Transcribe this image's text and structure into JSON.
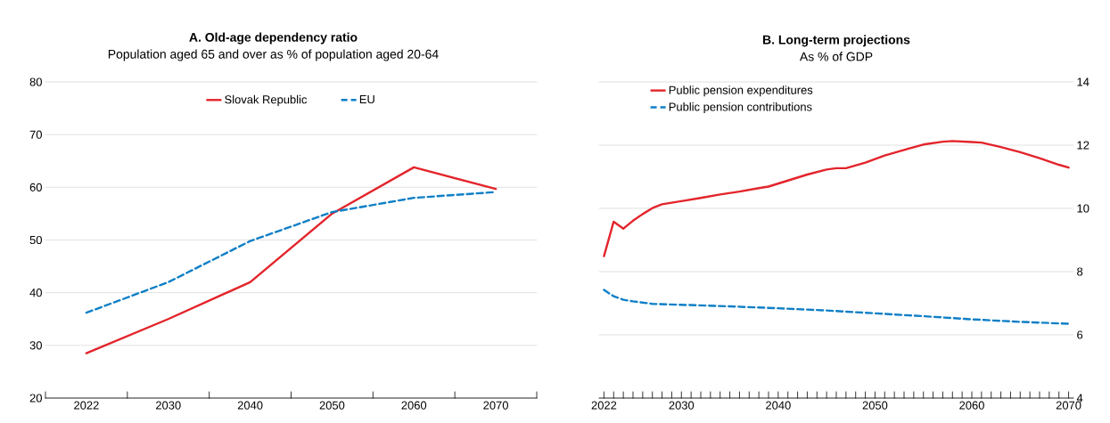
{
  "chart_data": [
    {
      "type": "line",
      "title": "A. Old-age dependency ratio",
      "subtitle": "Population aged 65 and over as % of population aged 20-64",
      "categories": [
        "2022",
        "2030",
        "2040",
        "2050",
        "2060",
        "2070"
      ],
      "series": [
        {
          "name": "Slovak Republic",
          "color": "#e3242b",
          "line_style": "solid",
          "values": [
            28.5,
            35,
            42,
            55,
            63.8,
            59.7
          ]
        },
        {
          "name": "EU",
          "color": "#0f7fc7",
          "line_style": "dashed",
          "values": [
            36.2,
            42,
            49.8,
            55.3,
            58,
            59.1
          ]
        }
      ],
      "ylim": [
        20,
        80
      ],
      "yticks": [
        20,
        30,
        40,
        50,
        60,
        70,
        80
      ],
      "grid": "y",
      "legend": "top",
      "marker": "none"
    },
    {
      "type": "line",
      "title": "B. Long-term projections",
      "subtitle": "As % of GDP",
      "series": [
        {
          "name": "Public pension expenditures",
          "color": "#e3242b",
          "line_style": "solid",
          "x": [
            2022,
            2023,
            2024,
            2025,
            2026,
            2027,
            2028,
            2029,
            2030,
            2032,
            2034,
            2036,
            2038,
            2039,
            2041,
            2043,
            2045,
            2046,
            2047,
            2049,
            2051,
            2053,
            2055,
            2057,
            2058,
            2060,
            2061,
            2063,
            2065,
            2067,
            2069,
            2070
          ],
          "values": [
            8.49,
            9.58,
            9.36,
            9.61,
            9.82,
            10.01,
            10.13,
            10.18,
            10.23,
            10.33,
            10.44,
            10.53,
            10.64,
            10.69,
            10.88,
            11.07,
            11.23,
            11.27,
            11.27,
            11.45,
            11.67,
            11.85,
            12.02,
            12.11,
            12.13,
            12.1,
            12.08,
            11.94,
            11.78,
            11.59,
            11.38,
            11.29
          ]
        },
        {
          "name": "Public pension contributions",
          "color": "#0f7fc7",
          "line_style": "dashed",
          "x": [
            2022,
            2023,
            2024,
            2025,
            2027,
            2030,
            2035,
            2040,
            2045,
            2050,
            2055,
            2060,
            2065,
            2070
          ],
          "values": [
            7.42,
            7.22,
            7.11,
            7.06,
            6.98,
            6.95,
            6.9,
            6.84,
            6.77,
            6.68,
            6.59,
            6.49,
            6.41,
            6.35
          ]
        }
      ],
      "xlim": [
        2021.5,
        2070.5
      ],
      "xticks": [
        2022,
        {
          "value": 2023,
          "label": null
        },
        {
          "value": 2024,
          "label": null
        },
        {
          "value": 2025,
          "label": null
        },
        {
          "value": 2026,
          "label": null
        },
        {
          "value": 2027,
          "label": null
        },
        {
          "value": 2028,
          "label": null
        },
        {
          "value": 2029,
          "label": null
        },
        2030,
        {
          "value": 2031,
          "label": null
        },
        {
          "value": 2032,
          "label": null
        },
        {
          "value": 2033,
          "label": null
        },
        {
          "value": 2034,
          "label": null
        },
        {
          "value": 2035,
          "label": null
        },
        {
          "value": 2036,
          "label": null
        },
        {
          "value": 2037,
          "label": null
        },
        {
          "value": 2038,
          "label": null
        },
        {
          "value": 2039,
          "label": null
        },
        2040,
        {
          "value": 2041,
          "label": null
        },
        {
          "value": 2042,
          "label": null
        },
        {
          "value": 2043,
          "label": null
        },
        {
          "value": 2044,
          "label": null
        },
        {
          "value": 2045,
          "label": null
        },
        {
          "value": 2046,
          "label": null
        },
        {
          "value": 2047,
          "label": null
        },
        {
          "value": 2048,
          "label": null
        },
        {
          "value": 2049,
          "label": null
        },
        2050,
        {
          "value": 2051,
          "label": null
        },
        {
          "value": 2052,
          "label": null
        },
        {
          "value": 2053,
          "label": null
        },
        {
          "value": 2054,
          "label": null
        },
        {
          "value": 2055,
          "label": null
        },
        {
          "value": 2056,
          "label": null
        },
        {
          "value": 2057,
          "label": null
        },
        {
          "value": 2058,
          "label": null
        },
        {
          "value": 2059,
          "label": null
        },
        2060,
        {
          "value": 2061,
          "label": null
        },
        {
          "value": 2062,
          "label": null
        },
        {
          "value": 2063,
          "label": null
        },
        {
          "value": 2064,
          "label": null
        },
        {
          "value": 2065,
          "label": null
        },
        {
          "value": 2066,
          "label": null
        },
        {
          "value": 2067,
          "label": null
        },
        {
          "value": 2068,
          "label": null
        },
        {
          "value": 2069,
          "label": null
        },
        2070
      ],
      "ylim": [
        4,
        14
      ],
      "yticks": [
        4,
        6,
        8,
        10,
        12,
        14
      ],
      "grid": "y",
      "legend": "top left",
      "marker": "none"
    }
  ]
}
